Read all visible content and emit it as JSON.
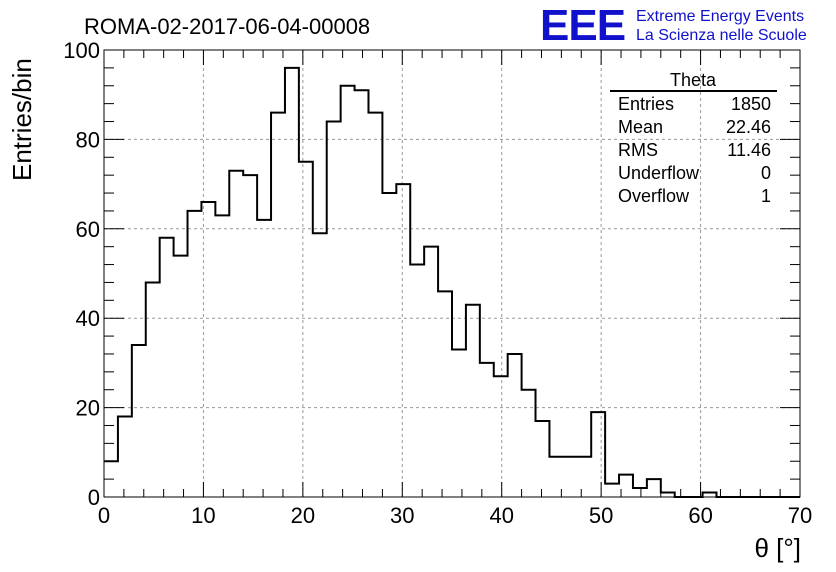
{
  "header": {
    "run_title": "ROMA-02-2017-06-04-00008",
    "logo_text": "EEE",
    "logo_line1": "Extreme Energy Events",
    "logo_line2": "La Scienza nelle Scuole"
  },
  "stats": {
    "title": "Theta",
    "rows": [
      {
        "label": "Entries",
        "value": "1850"
      },
      {
        "label": "Mean",
        "value": "22.46"
      },
      {
        "label": "RMS",
        "value": "11.46"
      },
      {
        "label": "Underflow",
        "value": "0"
      },
      {
        "label": "Overflow",
        "value": "1"
      }
    ]
  },
  "chart_data": {
    "type": "histogram",
    "title": "ROMA-02-2017-06-04-00008",
    "xlabel": "θ [°]",
    "ylabel": "Entries/bin",
    "xlim": [
      0,
      70
    ],
    "ylim": [
      0,
      100
    ],
    "bin_width": 1.4,
    "x_ticks": [
      0,
      10,
      20,
      30,
      40,
      50,
      60,
      70
    ],
    "y_ticks": [
      0,
      20,
      40,
      60,
      80,
      100
    ],
    "grid": true,
    "bin_edges": [
      0,
      1.4,
      2.8,
      4.2,
      5.6,
      7.0,
      8.4,
      9.8,
      11.2,
      12.6,
      14.0,
      15.4,
      16.8,
      18.2,
      19.6,
      21.0,
      22.4,
      23.8,
      25.2,
      26.6,
      28.0,
      29.4,
      30.8,
      32.2,
      33.6,
      35.0,
      36.4,
      37.8,
      39.2,
      40.6,
      42.0,
      43.4,
      44.8,
      46.2,
      47.6,
      49.0,
      50.4,
      51.8,
      53.2,
      54.6,
      56.0,
      57.4,
      58.8,
      60.2,
      61.6,
      63.0,
      64.4,
      65.8,
      67.2,
      68.6,
      70.0
    ],
    "values": [
      8,
      18,
      34,
      48,
      58,
      54,
      64,
      66,
      63,
      73,
      72,
      62,
      86,
      96,
      75,
      59,
      84,
      92,
      91,
      86,
      68,
      70,
      52,
      56,
      46,
      33,
      43,
      30,
      27,
      32,
      24,
      17,
      9,
      9,
      9,
      19,
      3,
      5,
      2,
      4,
      1,
      0,
      0,
      1,
      0,
      0,
      0,
      0,
      0,
      0
    ]
  }
}
